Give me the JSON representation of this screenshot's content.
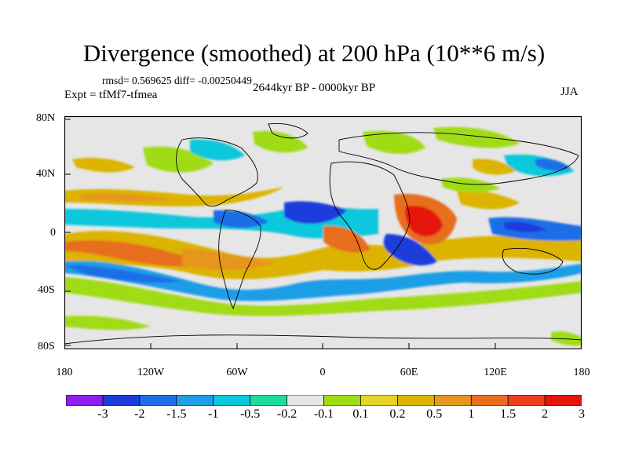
{
  "title": "Divergence (smoothed) at 200 hPa (10**6 m/s)",
  "stats": "rmsd= 0.569625 diff= -0.00250449",
  "experiment": "Expt = tfMf7-tfmea",
  "period": "2644kyr BP - 0000kyr BP",
  "season": "JJA",
  "y_axis": [
    "80N",
    "40N",
    "0",
    "40S",
    "80S"
  ],
  "x_axis": [
    "180",
    "120W",
    "60W",
    "0",
    "60E",
    "120E",
    "180"
  ],
  "colorbar": {
    "colors": [
      "#8c1ef0",
      "#1e3cdc",
      "#1e6ee6",
      "#1e9ee6",
      "#0ac8dc",
      "#1edca0",
      "#e6e6e6",
      "#a0dc14",
      "#e6d228",
      "#dcb400",
      "#e6961e",
      "#e66e1e",
      "#f03c1e",
      "#e6140a"
    ],
    "labels": [
      "-3",
      "-2",
      "-1.5",
      "-1",
      "-0.5",
      "-0.2",
      "-0.1",
      "0.1",
      "0.2",
      "0.5",
      "1",
      "1.5",
      "2",
      "3"
    ]
  }
}
